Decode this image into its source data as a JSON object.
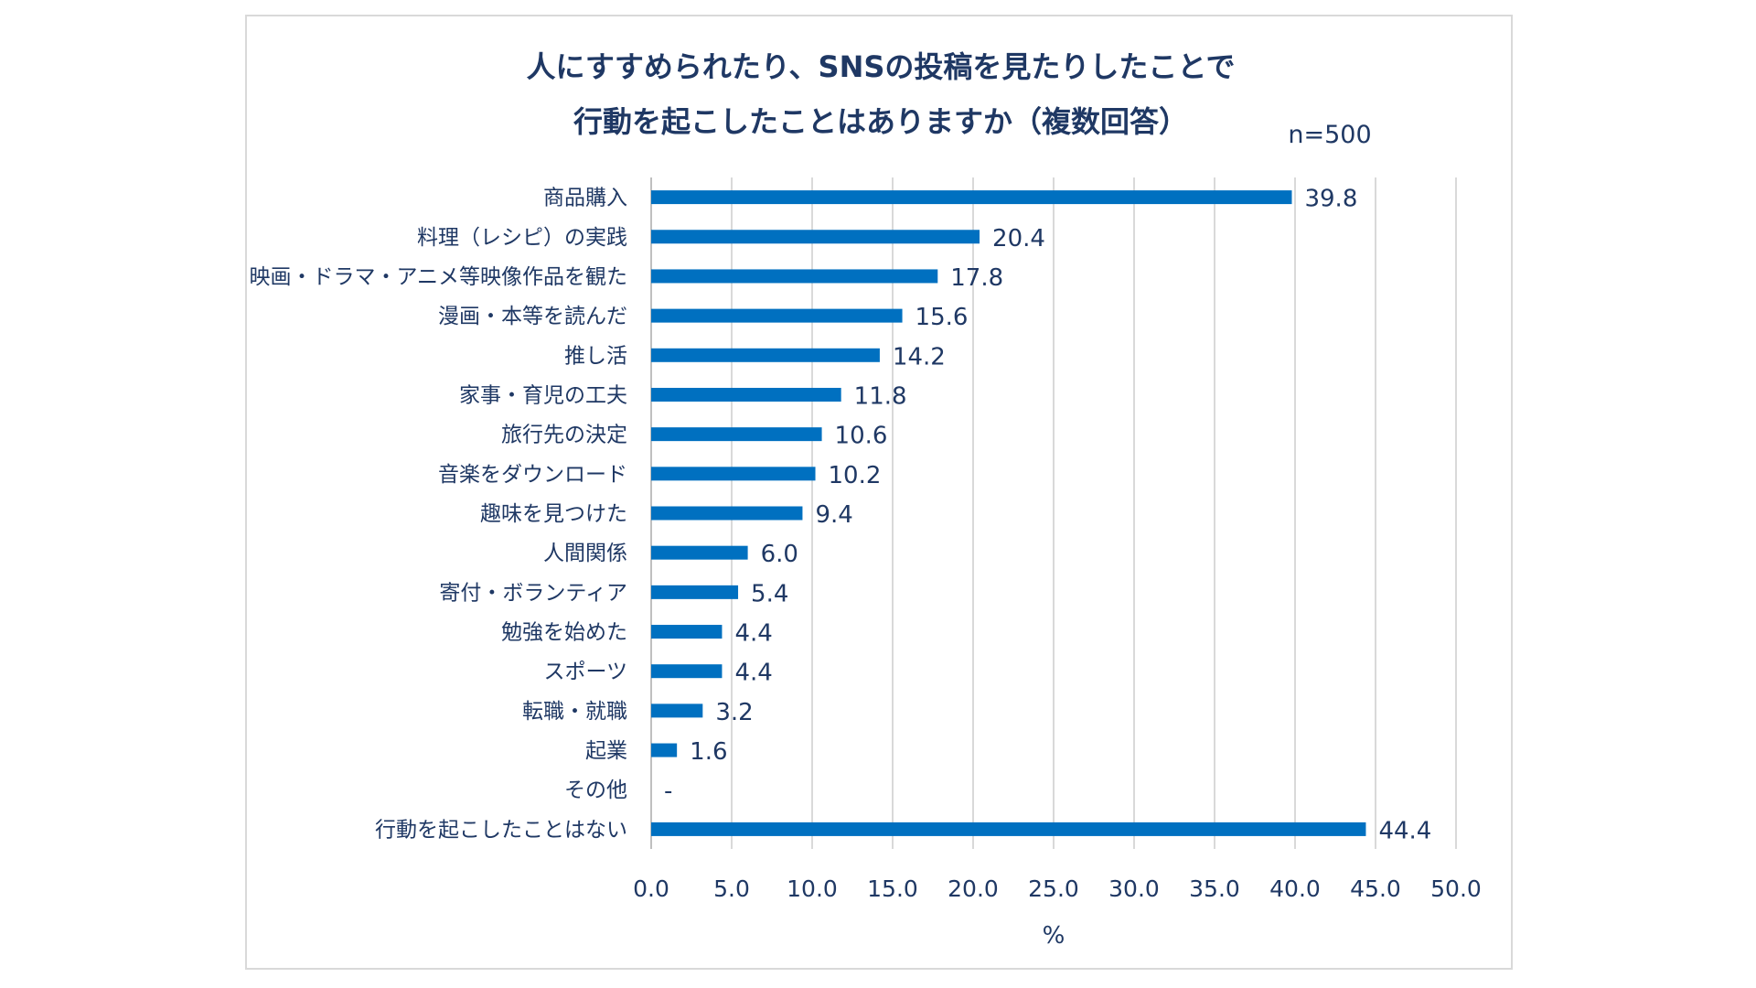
{
  "chart_data": {
    "type": "bar",
    "orientation": "horizontal",
    "title_lines": [
      "人にすすめられたり、SNSの投稿を見たりしたことで",
      "行動を起こしたことはありますか（複数回答）"
    ],
    "sample_note": "n=500",
    "categories": [
      "商品購入",
      "料理（レシピ）の実践",
      "映画・ドラマ・アニメ等映像作品を観た",
      "漫画・本等を読んだ",
      "推し活",
      "家事・育児の工夫",
      "旅行先の決定",
      "音楽をダウンロード",
      "趣味を見つけた",
      "人間関係",
      "寄付・ボランティア",
      "勉強を始めた",
      "スポーツ",
      "転職・就職",
      "起業",
      "その他",
      "行動を起こしたことはない"
    ],
    "values": [
      39.8,
      20.4,
      17.8,
      15.6,
      14.2,
      11.8,
      10.6,
      10.2,
      9.4,
      6.0,
      5.4,
      4.4,
      4.4,
      3.2,
      1.6,
      null,
      44.4
    ],
    "value_labels": [
      "39.8",
      "20.4",
      "17.8",
      "15.6",
      "14.2",
      "11.8",
      "10.6",
      "10.2",
      "9.4",
      "6.0",
      "5.4",
      "4.4",
      "4.4",
      "3.2",
      "1.6",
      "-",
      "44.4"
    ],
    "xlim": [
      0,
      50
    ],
    "xticks": [
      "0.0",
      "5.0",
      "10.0",
      "15.0",
      "20.0",
      "25.0",
      "30.0",
      "35.0",
      "40.0",
      "45.0",
      "50.0"
    ],
    "xlabel": "%",
    "grid": true,
    "legend": "none",
    "bar_color": "#0070c0",
    "grid_color": "#d9d9d9",
    "text_color": "#1f3864"
  }
}
